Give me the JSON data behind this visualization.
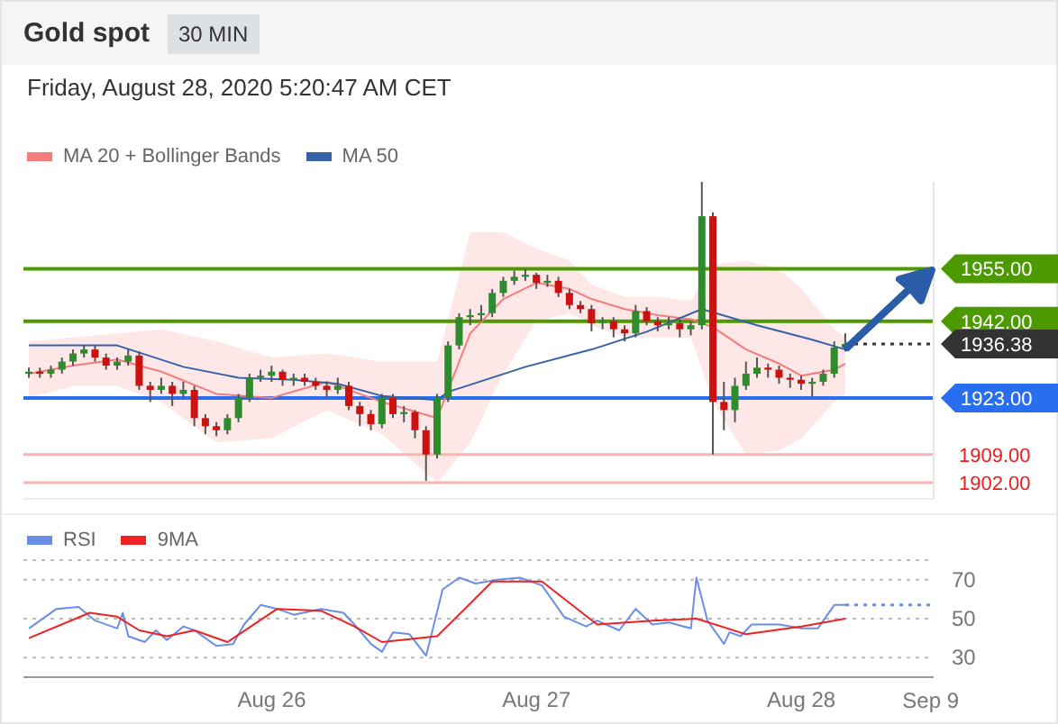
{
  "chart_data": [
    {
      "type": "candlestick",
      "title": "Gold spot",
      "subtitle": "30 MIN",
      "annotations": [
        "Friday, August 28, 2020 5:20:47 AM CET"
      ],
      "x": [
        "2020-08-25T02:00",
        "2020-08-25T03:00",
        "2020-08-25T04:00",
        "2020-08-25T05:00",
        "2020-08-25T06:00",
        "2020-08-25T07:00",
        "2020-08-25T08:00",
        "2020-08-25T09:00",
        "2020-08-25T10:00",
        "2020-08-25T11:00",
        "2020-08-25T12:00",
        "2020-08-25T13:00",
        "2020-08-25T14:00",
        "2020-08-25T15:00",
        "2020-08-25T16:00",
        "2020-08-25T17:00",
        "2020-08-25T18:00",
        "2020-08-25T19:00",
        "2020-08-25T20:00",
        "2020-08-25T21:00",
        "2020-08-25T22:00",
        "2020-08-25T23:00",
        "2020-08-26T00:00",
        "2020-08-26T01:00",
        "2020-08-26T02:00",
        "2020-08-26T03:00",
        "2020-08-26T04:00",
        "2020-08-26T05:00",
        "2020-08-26T06:00",
        "2020-08-26T07:00",
        "2020-08-26T08:00",
        "2020-08-26T09:00",
        "2020-08-26T10:00",
        "2020-08-26T11:00",
        "2020-08-26T12:00",
        "2020-08-26T13:00",
        "2020-08-26T14:00",
        "2020-08-26T15:00",
        "2020-08-26T16:00",
        "2020-08-26T17:00",
        "2020-08-26T18:00",
        "2020-08-26T19:00",
        "2020-08-26T20:00",
        "2020-08-26T21:00",
        "2020-08-26T22:00",
        "2020-08-26T23:00",
        "2020-08-27T00:00",
        "2020-08-27T01:00",
        "2020-08-27T02:00",
        "2020-08-27T03:00",
        "2020-08-27T04:00",
        "2020-08-27T05:00",
        "2020-08-27T06:00",
        "2020-08-27T07:00",
        "2020-08-27T08:00",
        "2020-08-27T09:00",
        "2020-08-27T10:00",
        "2020-08-27T11:00",
        "2020-08-27T12:00",
        "2020-08-27T13:00",
        "2020-08-27T14:00",
        "2020-08-27T15:00",
        "2020-08-27T16:00",
        "2020-08-27T17:00",
        "2020-08-27T18:00",
        "2020-08-27T19:00",
        "2020-08-27T20:00",
        "2020-08-27T21:00",
        "2020-08-27T22:00",
        "2020-08-27T23:00",
        "2020-08-28T00:00",
        "2020-08-28T01:00",
        "2020-08-28T02:00",
        "2020-08-28T03:00",
        "2020-08-28T04:00"
      ],
      "ohlc": [
        [
          1929,
          1930.5,
          1928,
          1929.5
        ],
        [
          1929.5,
          1930.5,
          1928,
          1929
        ],
        [
          1929,
          1931,
          1928,
          1930
        ],
        [
          1930,
          1933,
          1929,
          1932
        ],
        [
          1932,
          1935,
          1931,
          1934
        ],
        [
          1934,
          1936,
          1933,
          1935
        ],
        [
          1935,
          1936,
          1932,
          1933
        ],
        [
          1933,
          1934,
          1930,
          1931
        ],
        [
          1931,
          1933,
          1930,
          1932
        ],
        [
          1932,
          1935,
          1931,
          1933.5
        ],
        [
          1933.5,
          1934.5,
          1925,
          1926
        ],
        [
          1926,
          1927,
          1922,
          1925
        ],
        [
          1925,
          1928,
          1924,
          1926
        ],
        [
          1926,
          1927,
          1921,
          1924
        ],
        [
          1924,
          1927,
          1923,
          1925
        ],
        [
          1925,
          1926,
          1916,
          1918
        ],
        [
          1918,
          1919,
          1914,
          1916
        ],
        [
          1916,
          1917,
          1913.5,
          1915
        ],
        [
          1915,
          1919,
          1914,
          1918
        ],
        [
          1918,
          1924,
          1917,
          1923
        ],
        [
          1923,
          1929,
          1922,
          1928
        ],
        [
          1928,
          1930,
          1927,
          1928.5
        ],
        [
          1928.5,
          1931,
          1927,
          1929.5
        ],
        [
          1929.5,
          1930,
          1926,
          1927.5
        ],
        [
          1927.5,
          1929,
          1926,
          1928
        ],
        [
          1928,
          1929,
          1926,
          1927
        ],
        [
          1927,
          1928,
          1925,
          1926
        ],
        [
          1926,
          1927,
          1923,
          1925
        ],
        [
          1925,
          1928,
          1924,
          1926
        ],
        [
          1926,
          1927,
          1920,
          1921
        ],
        [
          1921,
          1922,
          1916,
          1919
        ],
        [
          1919,
          1920,
          1915,
          1916.5
        ],
        [
          1916.5,
          1924,
          1915.5,
          1923
        ],
        [
          1923,
          1924,
          1918,
          1919
        ],
        [
          1919,
          1921,
          1917,
          1919.5
        ],
        [
          1919.5,
          1920,
          1913,
          1915
        ],
        [
          1915,
          1916,
          1902.5,
          1909
        ],
        [
          1909,
          1924,
          1908,
          1923
        ],
        [
          1923,
          1937,
          1922,
          1936
        ],
        [
          1936,
          1944,
          1935,
          1943
        ],
        [
          1943,
          1945,
          1941,
          1943.5
        ],
        [
          1943.5,
          1946,
          1942,
          1944
        ],
        [
          1944,
          1950,
          1943,
          1949
        ],
        [
          1949,
          1953,
          1948,
          1952
        ],
        [
          1952,
          1954.5,
          1951,
          1953
        ],
        [
          1953,
          1955,
          1952,
          1953.5
        ],
        [
          1953.5,
          1954,
          1950,
          1951.5
        ],
        [
          1951.5,
          1953.5,
          1950.5,
          1952
        ],
        [
          1952,
          1953,
          1948,
          1949
        ],
        [
          1949,
          1950,
          1945,
          1946
        ],
        [
          1946,
          1947,
          1944,
          1945
        ],
        [
          1945,
          1946,
          1939.5,
          1941.5
        ],
        [
          1941.5,
          1943,
          1940,
          1942
        ],
        [
          1942,
          1943,
          1938,
          1940
        ],
        [
          1940,
          1941,
          1937,
          1939
        ],
        [
          1939,
          1946,
          1938,
          1944.5
        ],
        [
          1944.5,
          1945.5,
          1941,
          1942
        ],
        [
          1942,
          1943,
          1939.5,
          1941
        ],
        [
          1941,
          1943,
          1940,
          1941.5
        ],
        [
          1941.5,
          1942.5,
          1938,
          1940
        ],
        [
          1940,
          1942,
          1938.5,
          1941
        ],
        [
          1941,
          1976.5,
          1940,
          1968
        ],
        [
          1968,
          1969,
          1909,
          1922
        ],
        [
          1922,
          1927,
          1915,
          1920
        ],
        [
          1920,
          1928,
          1917,
          1926
        ],
        [
          1926,
          1932,
          1925,
          1929
        ],
        [
          1929,
          1933,
          1928,
          1930.5
        ],
        [
          1930.5,
          1931.5,
          1928,
          1930
        ],
        [
          1930,
          1931,
          1926.5,
          1928
        ],
        [
          1928,
          1929,
          1925.5,
          1927.5
        ],
        [
          1927.5,
          1928.5,
          1925,
          1926.5
        ],
        [
          1926.5,
          1928,
          1923,
          1927
        ],
        [
          1927,
          1930,
          1926,
          1929
        ],
        [
          1929,
          1937,
          1928,
          1935.5
        ],
        [
          1935.5,
          1939,
          1934.5,
          1936.38
        ]
      ],
      "series": [
        {
          "name": "MA 20 + Bollinger Bands",
          "type": "line",
          "color": "#f47c7c",
          "x": [
            "2020-08-25T02:00",
            "2020-08-25T06:00",
            "2020-08-25T10:00",
            "2020-08-25T14:00",
            "2020-08-25T19:00",
            "2020-08-26T00:00",
            "2020-08-26T05:00",
            "2020-08-26T10:00",
            "2020-08-26T15:00",
            "2020-08-26T18:00",
            "2020-08-26T21:00",
            "2020-08-27T00:00",
            "2020-08-27T03:00",
            "2020-08-27T05:00",
            "2020-08-27T08:00",
            "2020-08-27T11:00",
            "2020-08-27T14:00",
            "2020-08-27T16:00",
            "2020-08-27T19:00",
            "2020-08-27T22:00",
            "2020-08-28T00:00",
            "2020-08-28T03:00",
            "2020-08-28T04:00"
          ],
          "values": [
            1929,
            1931,
            1932.5,
            1929.5,
            1924,
            1923,
            1927,
            1922,
            1918,
            1939,
            1947.5,
            1951.5,
            1950,
            1947.5,
            1945,
            1943.5,
            1942.5,
            1940.5,
            1935,
            1931.5,
            1928.5,
            1930,
            1931.5
          ],
          "lower": [
            1923,
            1926,
            1926,
            1922,
            1912,
            1913,
            1920,
            1914,
            1902,
            1912,
            1929,
            1942,
            1944,
            1941,
            1938,
            1938,
            1938,
            1922,
            1909,
            1910,
            1913,
            1922,
            1924
          ],
          "upper": [
            1937,
            1938,
            1939,
            1940,
            1937,
            1933,
            1934,
            1932,
            1932,
            1964,
            1964,
            1960,
            1957,
            1951,
            1948,
            1948,
            1947,
            1956,
            1957,
            1955,
            1950,
            1940,
            1938
          ]
        },
        {
          "name": "MA 50",
          "type": "line",
          "color": "#3562a8",
          "x": [
            "2020-08-25T02:00",
            "2020-08-25T10:00",
            "2020-08-25T16:00",
            "2020-08-25T21:00",
            "2020-08-26T02:00",
            "2020-08-26T06:00",
            "2020-08-26T10:00",
            "2020-08-26T15:00",
            "2020-08-26T16:00",
            "2020-08-26T23:00",
            "2020-08-27T05:00",
            "2020-08-27T10:00",
            "2020-08-27T15:00",
            "2020-08-27T20:00",
            "2020-08-28T01:00",
            "2020-08-28T04:00"
          ],
          "values": [
            1936,
            1936,
            1930.7,
            1928,
            1927.5,
            1926.5,
            1923.5,
            1922.5,
            1924.5,
            1930.7,
            1935,
            1939.4,
            1945,
            1941,
            1937.4,
            1935
          ]
        }
      ],
      "ref_lines": [
        {
          "axis": "y",
          "value": 1955,
          "color": "#4c9a00"
        },
        {
          "axis": "y",
          "value": 1942,
          "color": "#4c9a00"
        },
        {
          "axis": "y",
          "value": 1936.38,
          "color": "#333333",
          "line_style": "dotted"
        },
        {
          "axis": "y",
          "value": 1923,
          "color": "#2a6ef0"
        },
        {
          "axis": "y",
          "value": 1909,
          "color": "#f8b4b4"
        },
        {
          "axis": "y",
          "value": 1902,
          "color": "#f8b4b4"
        }
      ],
      "yticks": [
        {
          "value": 1955,
          "label": "1955.00"
        },
        {
          "value": 1942,
          "label": "1942.00"
        },
        {
          "value": 1936.38,
          "label": "1936.38"
        },
        {
          "value": 1923,
          "label": "1923.00"
        },
        {
          "value": 1909,
          "label": "1909.00"
        },
        {
          "value": 1902,
          "label": "1902.00"
        }
      ],
      "xlim": [
        "2020-08-25T01:30",
        "2020-08-28T12:00"
      ],
      "ylim": [
        1898,
        1976.5
      ],
      "tick_labels": "y",
      "legend": "top left"
    },
    {
      "type": "line",
      "series": [
        {
          "name": "RSI",
          "color": "#6a8ee8",
          "x": [
            "2020-08-25T02:00",
            "2020-08-25T04:30",
            "2020-08-25T06:30",
            "2020-08-25T08:00",
            "2020-08-25T10:00",
            "2020-08-25T10:30",
            "2020-08-25T11:00",
            "2020-08-25T12:30",
            "2020-08-25T13:30",
            "2020-08-25T14:30",
            "2020-08-25T16:00",
            "2020-08-25T17:00",
            "2020-08-25T19:00",
            "2020-08-25T20:30",
            "2020-08-25T21:30",
            "2020-08-25T23:00",
            "2020-08-26T00:30",
            "2020-08-26T02:00",
            "2020-08-26T04:30",
            "2020-08-26T06:30",
            "2020-08-26T07:30",
            "2020-08-26T09:00",
            "2020-08-26T10:00",
            "2020-08-26T11:00",
            "2020-08-26T12:30",
            "2020-08-26T14:00",
            "2020-08-26T15:30",
            "2020-08-26T17:00",
            "2020-08-26T18:30",
            "2020-08-26T20:30",
            "2020-08-26T22:30",
            "2020-08-27T00:30",
            "2020-08-27T02:30",
            "2020-08-27T04:30",
            "2020-08-27T05:30",
            "2020-08-27T07:30",
            "2020-08-27T09:00",
            "2020-08-27T10:30",
            "2020-08-27T12:00",
            "2020-08-27T14:00",
            "2020-08-27T14:30",
            "2020-08-27T15:30",
            "2020-08-27T17:00",
            "2020-08-27T17:30",
            "2020-08-27T18:30",
            "2020-08-27T19:30",
            "2020-08-27T22:00",
            "2020-08-28T00:00",
            "2020-08-28T01:30",
            "2020-08-28T03:00",
            "2020-08-28T04:00"
          ],
          "values": [
            45,
            55,
            56,
            49,
            45,
            53,
            41,
            38,
            44,
            39,
            46,
            44,
            36,
            37,
            47,
            57,
            55,
            52,
            55,
            53,
            47,
            37,
            33,
            43,
            42,
            31,
            65,
            71,
            68,
            70,
            71,
            67,
            51,
            46,
            49,
            44,
            55,
            47,
            48,
            45,
            71,
            49,
            37,
            43,
            41,
            47,
            47,
            45,
            45,
            57,
            57
          ]
        },
        {
          "name": "9MA",
          "color": "#ee2222",
          "x": [
            "2020-08-25T02:00",
            "2020-08-25T07:30",
            "2020-08-25T10:00",
            "2020-08-25T12:00",
            "2020-08-25T14:30",
            "2020-08-25T17:00",
            "2020-08-25T20:00",
            "2020-08-26T00:30",
            "2020-08-26T04:30",
            "2020-08-26T07:30",
            "2020-08-26T10:00",
            "2020-08-26T15:00",
            "2020-08-26T20:00",
            "2020-08-27T00:30",
            "2020-08-27T05:30",
            "2020-08-27T10:30",
            "2020-08-27T14:30",
            "2020-08-27T19:00",
            "2020-08-28T00:00",
            "2020-08-28T04:00"
          ],
          "values": [
            40,
            53,
            51,
            44,
            41,
            44,
            38,
            55,
            54,
            46,
            38,
            41,
            69,
            69,
            47,
            49,
            50,
            42,
            46,
            50
          ]
        }
      ],
      "ref_lines": [
        {
          "axis": "y",
          "value": 57,
          "color": "#6a8ee8",
          "line_style": "dotted"
        }
      ],
      "xlim": [
        "2020-08-25T01:30",
        "2020-08-28T12:00"
      ],
      "xticks": [
        {
          "value": "2020-08-26T00:00",
          "label": "Aug 26"
        },
        {
          "value": "2020-08-27T00:00",
          "label": "Aug 27"
        },
        {
          "value": "2020-08-28T00:00",
          "label": "Aug 28"
        }
      ],
      "annotations": [
        "Sep 9"
      ],
      "ylim": [
        20,
        80
      ],
      "yticks": [
        30,
        50,
        70
      ],
      "grid": "y",
      "legend": "top left"
    }
  ]
}
